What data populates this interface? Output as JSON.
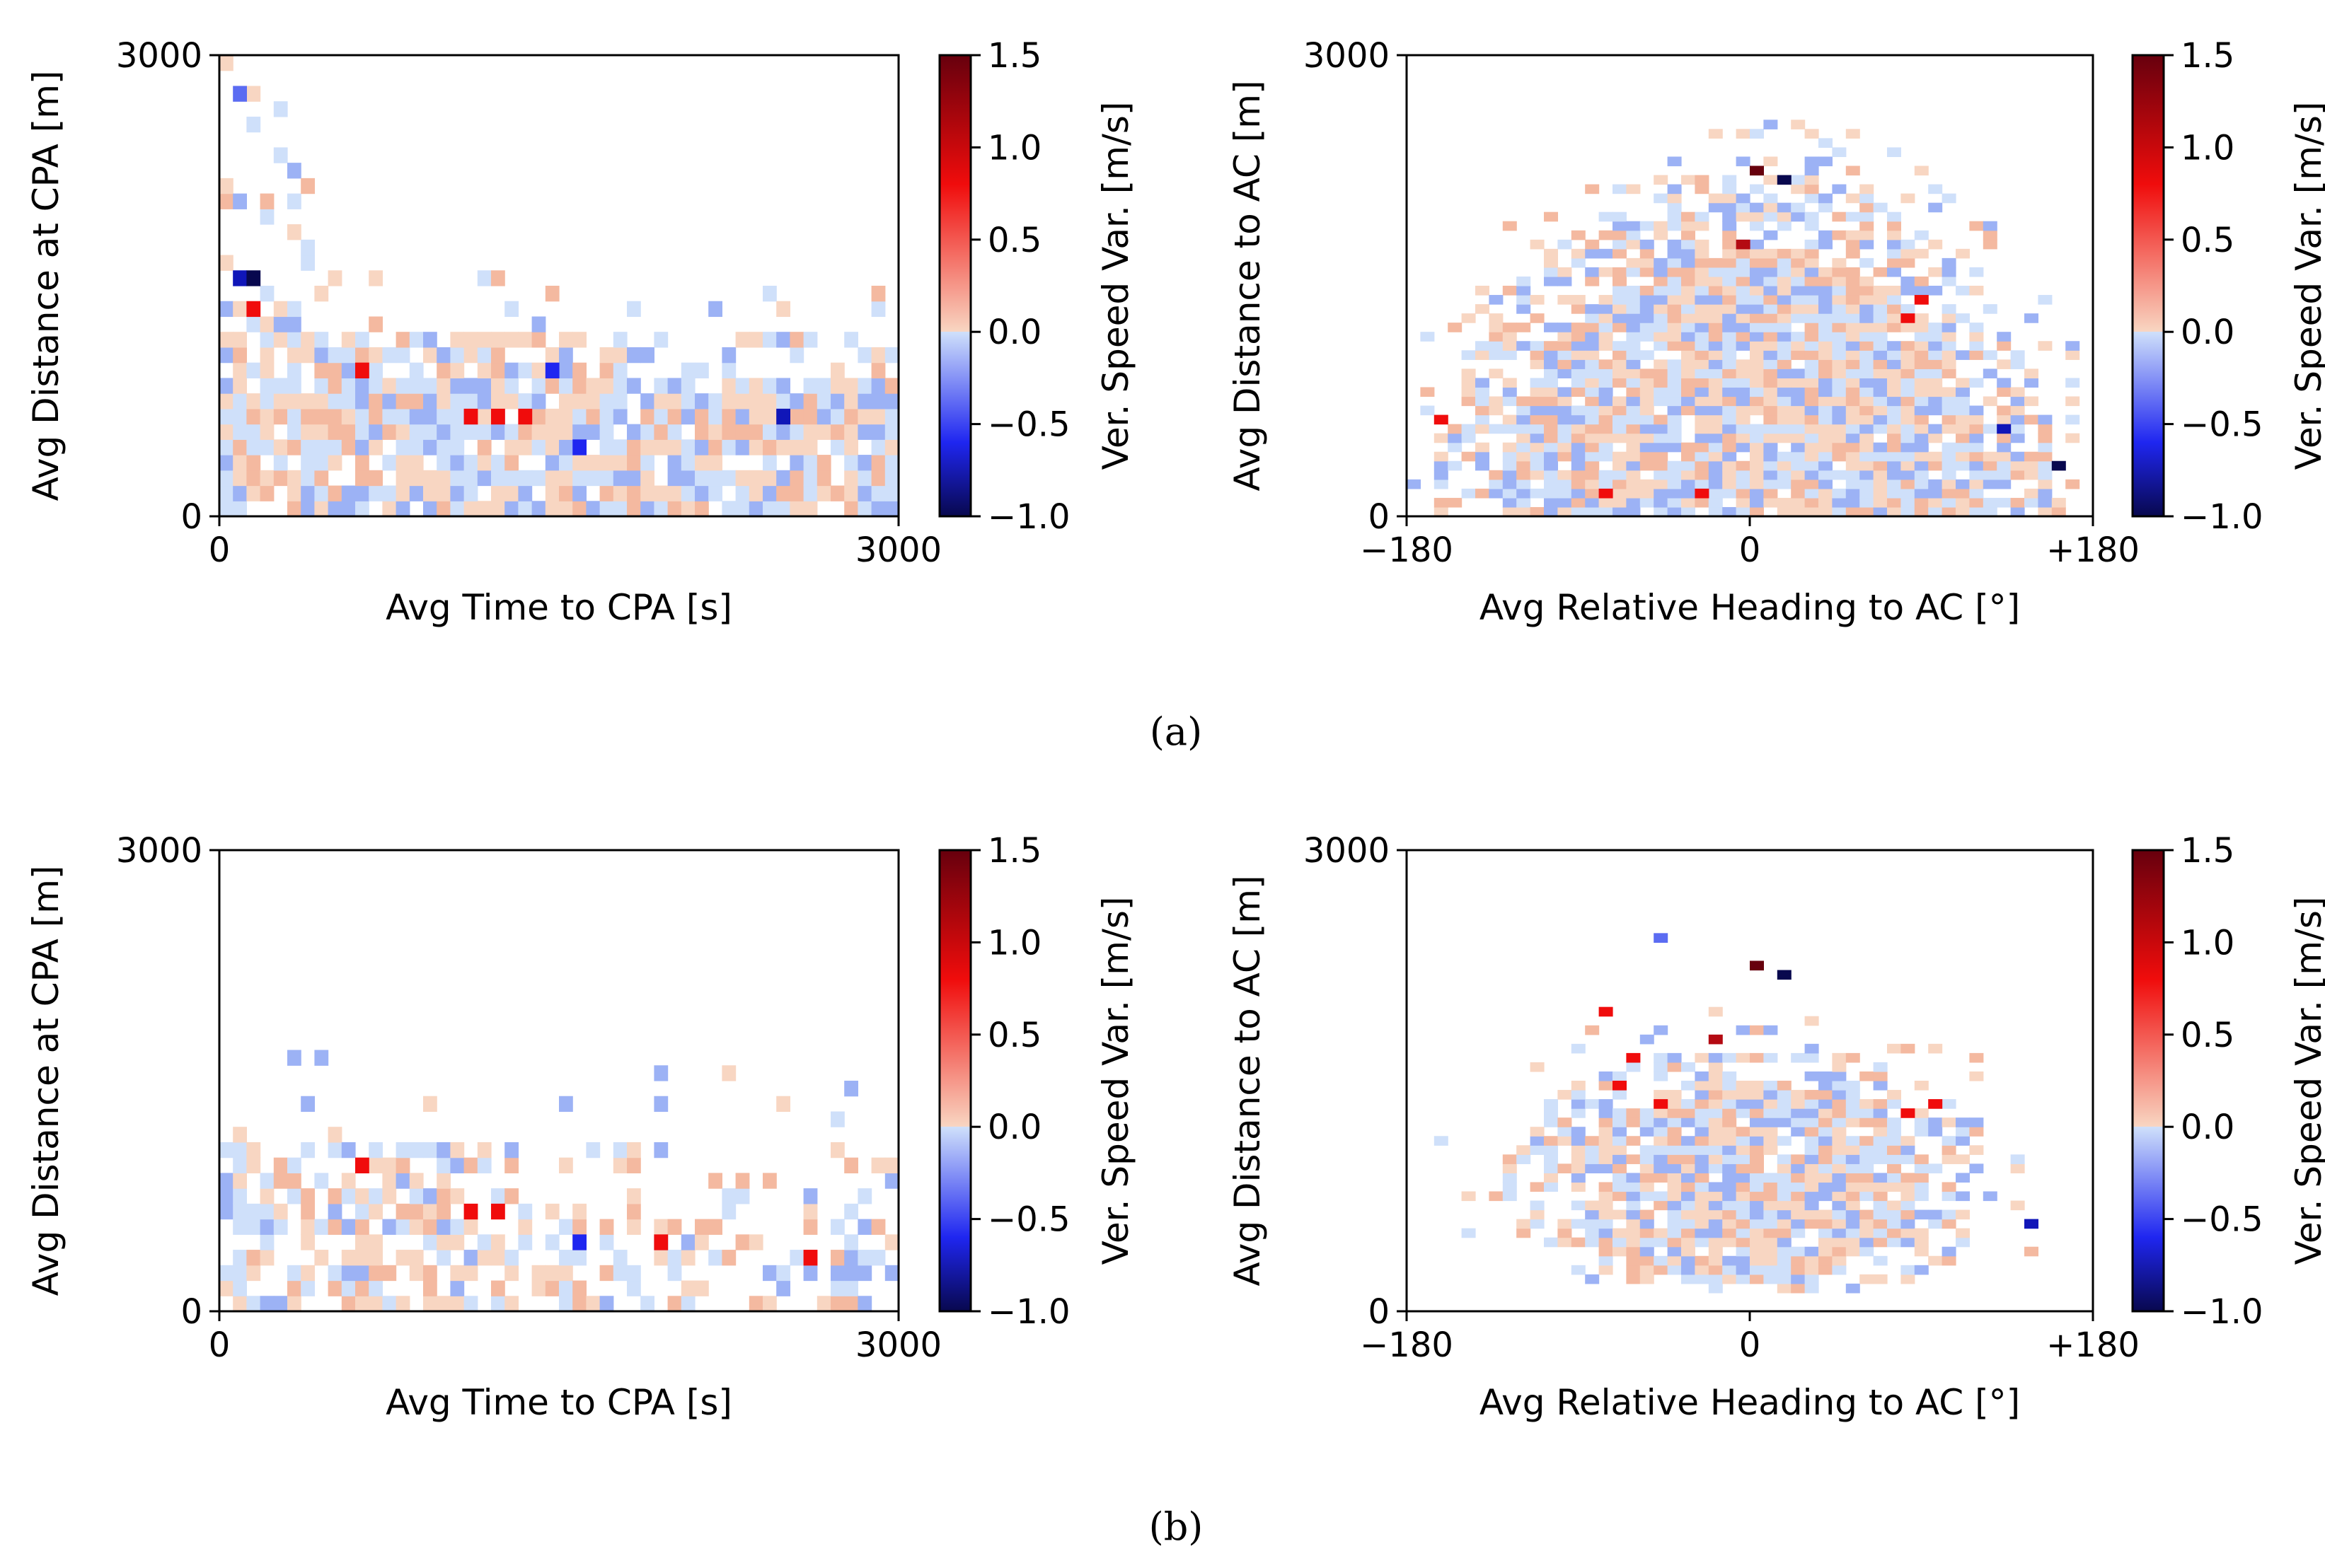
{
  "captions": {
    "a": "(a)",
    "b": "(b)"
  },
  "colorbar": {
    "label": "Ver. Speed Var. [m/s]",
    "range": [
      -1.0,
      1.5
    ],
    "ticks": [
      "1.5",
      "1.0",
      "0.5",
      "0.0",
      "−0.5",
      "−1.0"
    ],
    "colormap": [
      "#08084e",
      "#1f26f0",
      "#cfe0fa",
      "#f8d6c2",
      "#f00c0c",
      "#67000d"
    ]
  },
  "chart_data": [
    {
      "id": "a-left",
      "type": "heatmap",
      "xlabel": "Avg Time to CPA [s]",
      "ylabel": "Avg Distance at CPA [m]",
      "xlim": [
        0,
        3000
      ],
      "ylim": [
        0,
        3000
      ],
      "xticks": [
        "0",
        "3000"
      ],
      "yticks": [
        "0",
        "3000"
      ],
      "bins": [
        50,
        30
      ],
      "notable_cells": [
        {
          "x": 90,
          "y": 1530,
          "v": -0.8
        },
        {
          "x": 150,
          "y": 1530,
          "v": -0.9
        },
        {
          "x": 170,
          "y": 1300,
          "v": 0.6
        },
        {
          "x": 610,
          "y": 980,
          "v": 0.6
        },
        {
          "x": 1100,
          "y": 600,
          "v": 0.6
        },
        {
          "x": 1230,
          "y": 600,
          "v": 0.7
        },
        {
          "x": 1340,
          "y": 600,
          "v": 0.7
        },
        {
          "x": 1470,
          "y": 920,
          "v": -0.6
        },
        {
          "x": 1590,
          "y": 480,
          "v": -0.7
        },
        {
          "x": 2510,
          "y": 600,
          "v": -0.8
        },
        {
          "x": 105,
          "y": 2720,
          "v": -0.5
        }
      ]
    },
    {
      "id": "a-right",
      "type": "heatmap",
      "xlabel": "Avg Relative Heading to AC [°]",
      "ylabel": "Avg Distance to AC [m]",
      "xlim": [
        -180,
        180
      ],
      "ylim": [
        0,
        3000
      ],
      "xticks": [
        "−180",
        "0",
        "+180"
      ],
      "yticks": [
        "0",
        "3000"
      ],
      "bins": [
        50,
        50
      ],
      "notable_cells": [
        {
          "x": 6,
          "y": 2260,
          "v": 1.4
        },
        {
          "x": 20,
          "y": 2200,
          "v": -1.0
        },
        {
          "x": -6,
          "y": 1780,
          "v": 1.0
        },
        {
          "x": -162,
          "y": 630,
          "v": 0.8
        },
        {
          "x": -74,
          "y": 120,
          "v": 0.8
        },
        {
          "x": -22,
          "y": 120,
          "v": 0.7
        },
        {
          "x": 135,
          "y": 550,
          "v": -0.8
        },
        {
          "x": 160,
          "y": 300,
          "v": -0.9
        },
        {
          "x": 80,
          "y": 1300,
          "v": 0.6
        },
        {
          "x": 88,
          "y": 1420,
          "v": 0.6
        }
      ]
    },
    {
      "id": "b-left",
      "type": "heatmap",
      "xlabel": "Avg Time to CPA [s]",
      "ylabel": "Avg Distance at CPA [m]",
      "xlim": [
        0,
        3000
      ],
      "ylim": [
        0,
        3000
      ],
      "xticks": [
        "0",
        "3000"
      ],
      "yticks": [
        "0",
        "3000"
      ],
      "bins": [
        50,
        30
      ],
      "notable_cells": [
        {
          "x": 610,
          "y": 980,
          "v": 0.6
        },
        {
          "x": 1100,
          "y": 600,
          "v": 0.6
        },
        {
          "x": 1230,
          "y": 600,
          "v": 0.7
        },
        {
          "x": 1590,
          "y": 480,
          "v": -0.6
        },
        {
          "x": 1960,
          "y": 480,
          "v": 0.7
        },
        {
          "x": 2630,
          "y": 300,
          "v": 0.6
        }
      ]
    },
    {
      "id": "b-right",
      "type": "heatmap",
      "xlabel": "Avg Relative Heading to AC [°]",
      "ylabel": "Avg Distance to AC [m]",
      "xlim": [
        -180,
        180
      ],
      "ylim": [
        0,
        3000
      ],
      "xticks": [
        "−180",
        "0",
        "+180"
      ],
      "yticks": [
        "0",
        "3000"
      ],
      "bins": [
        50,
        50
      ],
      "notable_cells": [
        {
          "x": 6,
          "y": 2260,
          "v": 1.4
        },
        {
          "x": 20,
          "y": 2200,
          "v": -1.0
        },
        {
          "x": -16,
          "y": 1780,
          "v": 1.0
        },
        {
          "x": -74,
          "y": 1960,
          "v": 0.8
        },
        {
          "x": -60,
          "y": 1630,
          "v": 0.7
        },
        {
          "x": -66,
          "y": 1440,
          "v": 0.6
        },
        {
          "x": -44,
          "y": 1340,
          "v": 0.6
        },
        {
          "x": 80,
          "y": 1300,
          "v": 0.6
        },
        {
          "x": 100,
          "y": 1360,
          "v": 0.6
        },
        {
          "x": 145,
          "y": 550,
          "v": -0.8
        },
        {
          "x": -50,
          "y": 2420,
          "v": -0.5
        }
      ]
    }
  ]
}
